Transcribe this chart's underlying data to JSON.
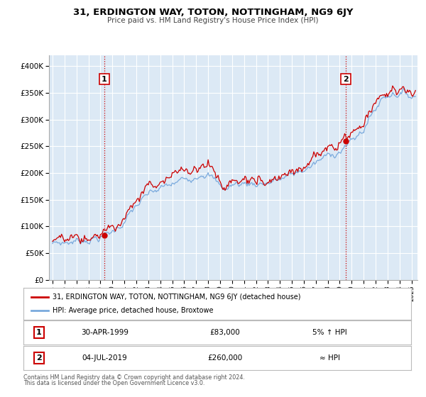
{
  "title": "31, ERDINGTON WAY, TOTON, NOTTINGHAM, NG9 6JY",
  "subtitle": "Price paid vs. HM Land Registry's House Price Index (HPI)",
  "legend_line1": "31, ERDINGTON WAY, TOTON, NOTTINGHAM, NG9 6JY (detached house)",
  "legend_line2": "HPI: Average price, detached house, Broxtowe",
  "annotation1_label": "1",
  "annotation1_date": "30-APR-1999",
  "annotation1_price": "£83,000",
  "annotation1_hpi": "5% ↑ HPI",
  "annotation2_label": "2",
  "annotation2_date": "04-JUL-2019",
  "annotation2_price": "£260,000",
  "annotation2_hpi": "≈ HPI",
  "footer1": "Contains HM Land Registry data © Crown copyright and database right 2024.",
  "footer2": "This data is licensed under the Open Government Licence v3.0.",
  "sale1_year": 1999.33,
  "sale1_value": 83000,
  "sale2_year": 2019.5,
  "sale2_value": 260000,
  "property_color": "#cc0000",
  "hpi_color": "#7aaadd",
  "background_color": "#dce9f5",
  "plot_bg": "#ffffff",
  "ylim": [
    0,
    420000
  ],
  "yticks": [
    0,
    50000,
    100000,
    150000,
    200000,
    250000,
    300000,
    350000,
    400000
  ],
  "xlim_start": 1994.7,
  "xlim_end": 2025.5,
  "grid_color": "#ffffff",
  "vline_color": "#cc0000"
}
